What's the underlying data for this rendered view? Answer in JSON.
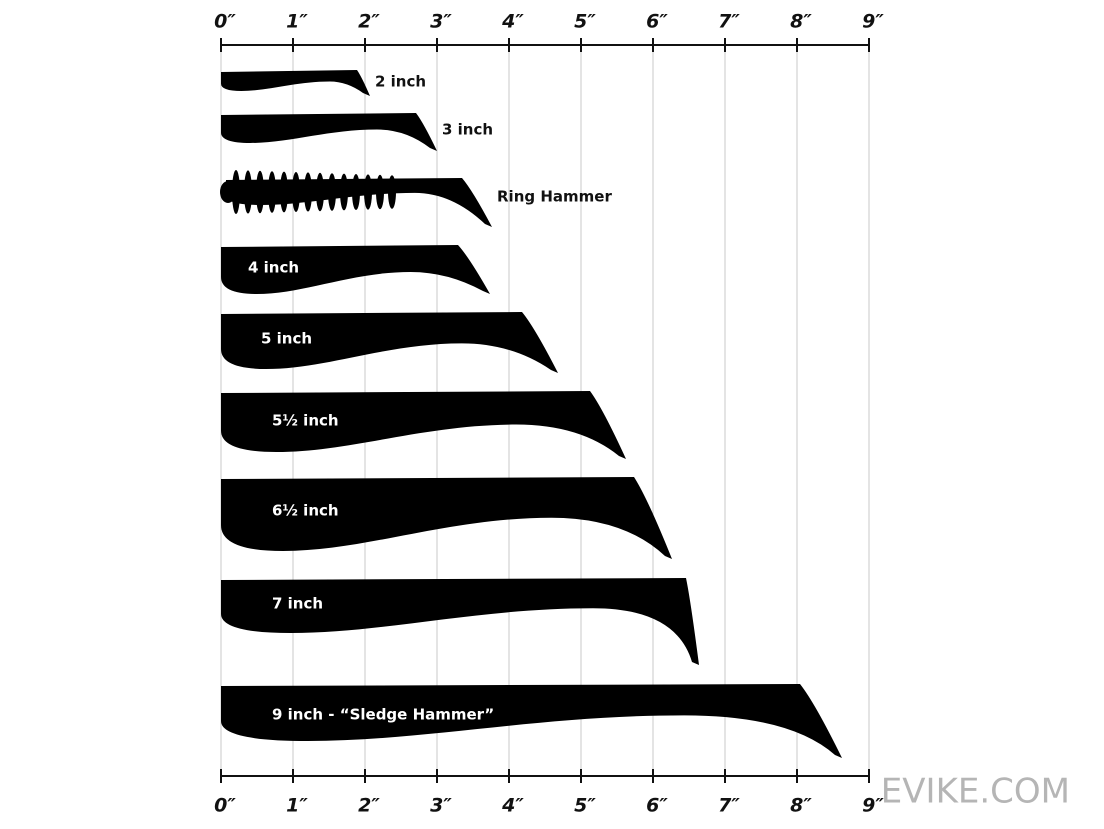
{
  "ruler": {
    "labels": [
      "0″",
      "1″",
      "2″",
      "3″",
      "4″",
      "5″",
      "6″",
      "7″",
      "8″",
      "9″"
    ]
  },
  "baits": [
    {
      "label": "2 inch"
    },
    {
      "label": "3 inch"
    },
    {
      "label": "Ring Hammer"
    },
    {
      "label": "4 inch"
    },
    {
      "label": "5 inch"
    },
    {
      "label": "5½ inch"
    },
    {
      "label": "6½ inch"
    },
    {
      "label": "7 inch"
    },
    {
      "label": "9 inch - “Sledge Hammer”"
    }
  ],
  "watermark": "EVIKE.COM"
}
